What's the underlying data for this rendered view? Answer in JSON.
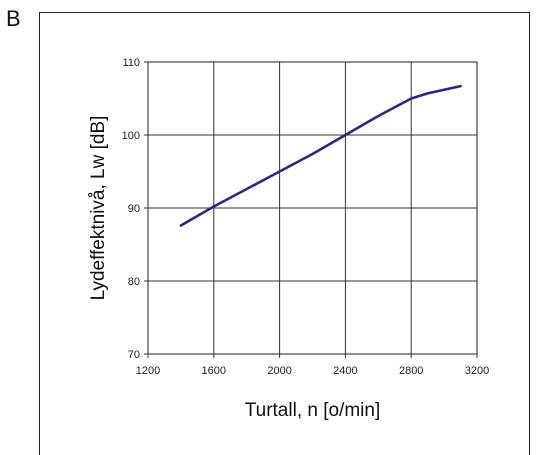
{
  "panel_label": "B",
  "chart_data": {
    "type": "line",
    "xlabel": "Turtall, n [o/min]",
    "ylabel": "Lydeffektnivå, Lw [dB]",
    "xlim": [
      1200,
      3200
    ],
    "ylim": [
      70,
      110
    ],
    "xticks": [
      "1200",
      "1600",
      "2000",
      "2400",
      "2800",
      "3200"
    ],
    "yticks": [
      "70",
      "80",
      "90",
      "100",
      "110"
    ],
    "grid": true,
    "line_color": "#2b2a7a",
    "series": [
      {
        "x": [
          1400,
          1600,
          1800,
          2000,
          2200,
          2400,
          2600,
          2800,
          2900,
          3100
        ],
        "values": [
          87.6,
          90.2,
          92.6,
          95.0,
          97.4,
          100.0,
          102.6,
          105.0,
          105.7,
          106.7
        ]
      }
    ]
  }
}
